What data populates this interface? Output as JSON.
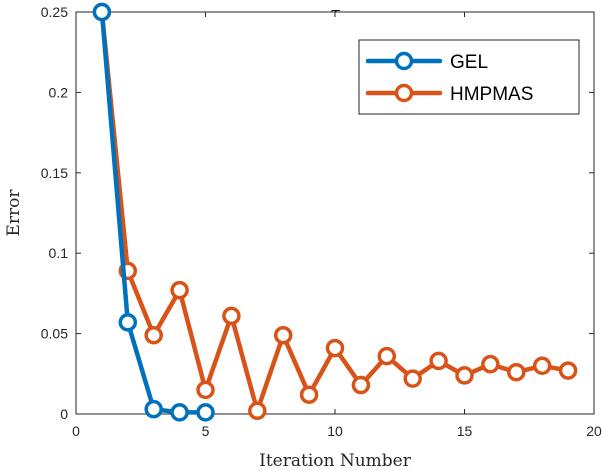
{
  "chart_data": {
    "type": "line",
    "title": "τ",
    "xlabel": "Iteration Number",
    "ylabel": "Error",
    "xlim": [
      0,
      20
    ],
    "ylim": [
      0,
      0.25
    ],
    "xticks": [
      0,
      5,
      10,
      15,
      20
    ],
    "xtick_labels": [
      "0",
      "5",
      "10",
      "15",
      "20"
    ],
    "yticks": [
      0,
      0.05,
      0.1,
      0.15,
      0.2,
      0.25
    ],
    "ytick_labels": [
      "0",
      "0.05",
      "0.1",
      "0.15",
      "0.2",
      "0.25"
    ],
    "grid": false,
    "legend_position": "top-right",
    "series": [
      {
        "name": "GEL",
        "color": "#0072BD",
        "marker": "circle",
        "x": [
          1,
          2,
          3,
          4,
          5
        ],
        "y": [
          0.25,
          0.057,
          0.003,
          0.001,
          0.001
        ]
      },
      {
        "name": "HMPMAS",
        "color": "#D95319",
        "marker": "circle",
        "x": [
          1,
          2,
          3,
          4,
          5,
          6,
          7,
          8,
          9,
          10,
          11,
          12,
          13,
          14,
          15,
          16,
          17,
          18,
          19
        ],
        "y": [
          0.25,
          0.089,
          0.049,
          0.077,
          0.015,
          0.061,
          0.002,
          0.049,
          0.012,
          0.041,
          0.018,
          0.036,
          0.022,
          0.033,
          0.024,
          0.031,
          0.026,
          0.03,
          0.027
        ]
      }
    ]
  }
}
